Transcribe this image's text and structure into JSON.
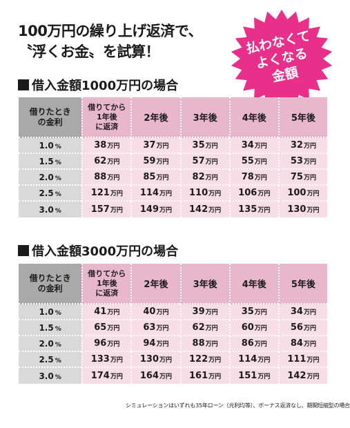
{
  "headline": {
    "line1": "100万円の繰り上げ返済で、",
    "line2": "〝浮くお金〟を試算！"
  },
  "badge": {
    "line1": "払わなくて",
    "line2": "よくなる",
    "line3": "金額",
    "color": "#e8308a"
  },
  "header": {
    "corner_line1": "借りたとき",
    "corner_line2": "の金利",
    "col1_line1": "借りてから",
    "col1_line2": "1年後",
    "col1_line3": "に返済",
    "col2": "2年後",
    "col3": "3年後",
    "col4": "4年後",
    "col5": "5年後"
  },
  "unit": "万円",
  "percent": "%",
  "section1": {
    "title": "借入金額1000万円の場合",
    "rows": [
      {
        "rate": "1.0",
        "values": [
          "38",
          "37",
          "35",
          "34",
          "32"
        ]
      },
      {
        "rate": "1.5",
        "values": [
          "62",
          "59",
          "57",
          "55",
          "53"
        ]
      },
      {
        "rate": "2.0",
        "values": [
          "88",
          "85",
          "82",
          "78",
          "75"
        ]
      },
      {
        "rate": "2.5",
        "values": [
          "121",
          "114",
          "110",
          "106",
          "100"
        ]
      },
      {
        "rate": "3.0",
        "values": [
          "157",
          "149",
          "142",
          "135",
          "130"
        ]
      }
    ]
  },
  "section2": {
    "title": "借入金額3000万円の場合",
    "rows": [
      {
        "rate": "1.0",
        "values": [
          "41",
          "40",
          "39",
          "35",
          "34"
        ]
      },
      {
        "rate": "1.5",
        "values": [
          "65",
          "63",
          "62",
          "60",
          "56"
        ]
      },
      {
        "rate": "2.0",
        "values": [
          "96",
          "94",
          "88",
          "86",
          "84"
        ]
      },
      {
        "rate": "2.5",
        "values": [
          "133",
          "130",
          "122",
          "114",
          "111"
        ]
      },
      {
        "rate": "3.0",
        "values": [
          "174",
          "164",
          "161",
          "151",
          "142"
        ]
      }
    ]
  },
  "footnote": "シミュレーションはいずれも35年ローン（元利均等）、ボーナス返済なし、期間短縮型の場合"
}
